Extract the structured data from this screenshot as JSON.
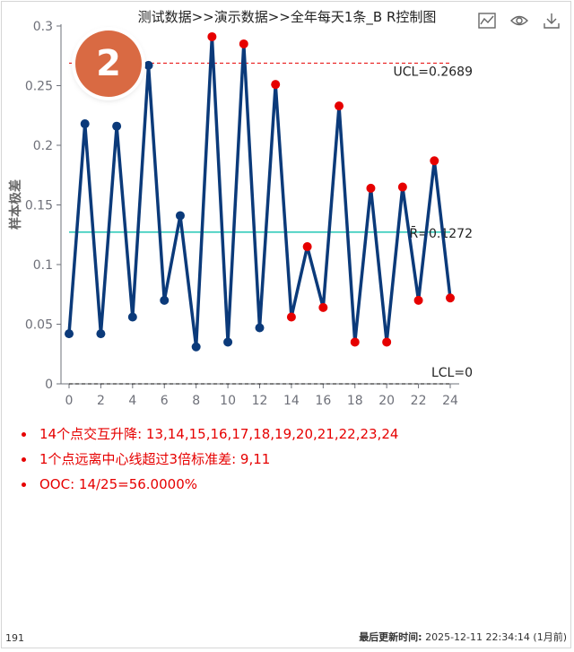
{
  "title": "测试数据>>演示数据>>全年每天1条_B R控制图",
  "badge": "2",
  "toolbox": [
    {
      "name": "line-chart-icon"
    },
    {
      "name": "eye-icon"
    },
    {
      "name": "download-icon"
    }
  ],
  "colors": {
    "line": "#0b3a7a",
    "in_control_point": "#0b3a7a",
    "out_of_control_point": "#e60000",
    "ucl": "#e60000",
    "center": "#33ccbb",
    "lcl": "#000000",
    "badge": "#d96a43",
    "notes": "#e60000"
  },
  "chart_data": {
    "type": "line",
    "ylabel": "样本极差",
    "xlabel": "",
    "xlim": [
      0,
      24
    ],
    "ylim": [
      0,
      0.3
    ],
    "xticks": [
      "0",
      "2",
      "4",
      "6",
      "8",
      "10",
      "12",
      "14",
      "16",
      "18",
      "20",
      "22",
      "24"
    ],
    "yticks": [
      "0",
      "0.05",
      "0.1",
      "0.15",
      "0.2",
      "0.25",
      "0.3"
    ],
    "x": [
      0,
      1,
      2,
      3,
      4,
      5,
      6,
      7,
      8,
      9,
      10,
      11,
      12,
      13,
      14,
      15,
      16,
      17,
      18,
      19,
      20,
      21,
      22,
      23,
      24
    ],
    "values": [
      0.042,
      0.218,
      0.042,
      0.216,
      0.056,
      0.267,
      0.07,
      0.141,
      0.031,
      0.291,
      0.035,
      0.285,
      0.047,
      0.251,
      0.056,
      0.115,
      0.064,
      0.233,
      0.035,
      0.164,
      0.035,
      0.165,
      0.07,
      0.187,
      0.072
    ],
    "out_of_control": [
      9,
      11,
      13,
      14,
      15,
      16,
      17,
      18,
      19,
      20,
      21,
      22,
      23,
      24
    ],
    "control_lines": [
      {
        "name": "UCL",
        "value": 0.2689,
        "label": "UCL=0.2689"
      },
      {
        "name": "CL",
        "value": 0.1272,
        "label": "R̄=0.1272"
      },
      {
        "name": "LCL",
        "value": 0,
        "label": "LCL=0"
      }
    ]
  },
  "notes": [
    "14个点交互升降: 13,14,15,16,17,18,19,20,21,22,23,24",
    "1个点远离中心线超过3倍标准差: 9,11",
    "OOC: 14/25=56.0000%"
  ],
  "footer": {
    "left": "191",
    "updated_label": "最后更新时间:",
    "updated_value": "2025-12-11 22:34:14 (1月前)"
  }
}
